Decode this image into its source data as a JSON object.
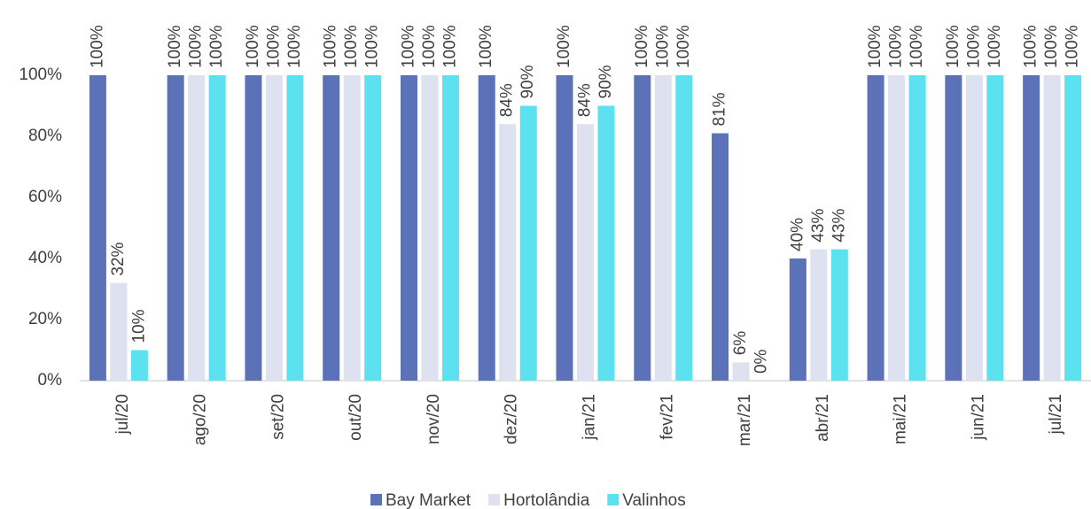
{
  "chart_data": {
    "type": "bar",
    "categories": [
      "jul/20",
      "ago/20",
      "set/20",
      "out/20",
      "nov/20",
      "dez/20",
      "jan/21",
      "fev/21",
      "mar/21",
      "abr/21",
      "mai/21",
      "jun/21",
      "jul/21"
    ],
    "series": [
      {
        "name": "Bay Market",
        "color": "#5b72b9",
        "values": [
          100,
          100,
          100,
          100,
          100,
          100,
          100,
          100,
          81,
          40,
          100,
          100,
          100
        ],
        "value_labels": [
          "100%",
          "100%",
          "100%",
          "100%",
          "100%",
          "100%",
          "100%",
          "100%",
          "81%",
          "40%",
          "100%",
          "100%",
          "100%"
        ]
      },
      {
        "name": "Hortolândia",
        "color": "#dde1f0",
        "values": [
          32,
          100,
          100,
          100,
          100,
          84,
          84,
          100,
          6,
          43,
          100,
          100,
          100
        ],
        "value_labels": [
          "32%",
          "100%",
          "100%",
          "100%",
          "100%",
          "84%",
          "84%",
          "100%",
          "6%",
          "43%",
          "100%",
          "100%",
          "100%"
        ]
      },
      {
        "name": "Valinhos",
        "color": "#5ce1f0",
        "values": [
          10,
          100,
          100,
          100,
          100,
          90,
          90,
          100,
          0,
          43,
          100,
          100,
          100
        ],
        "value_labels": [
          "10%",
          "100%",
          "100%",
          "100%",
          "100%",
          "90%",
          "90%",
          "100%",
          "0%",
          "43%",
          "100%",
          "100%",
          "100%"
        ]
      }
    ],
    "ylim": [
      0,
      100
    ],
    "yticks": [
      {
        "value": 0,
        "label": "0%"
      },
      {
        "value": 20,
        "label": "20%"
      },
      {
        "value": 40,
        "label": "40%"
      },
      {
        "value": 60,
        "label": "60%"
      },
      {
        "value": 80,
        "label": "80%"
      },
      {
        "value": 100,
        "label": "100%"
      }
    ],
    "grid": false,
    "legend": "bottom"
  }
}
